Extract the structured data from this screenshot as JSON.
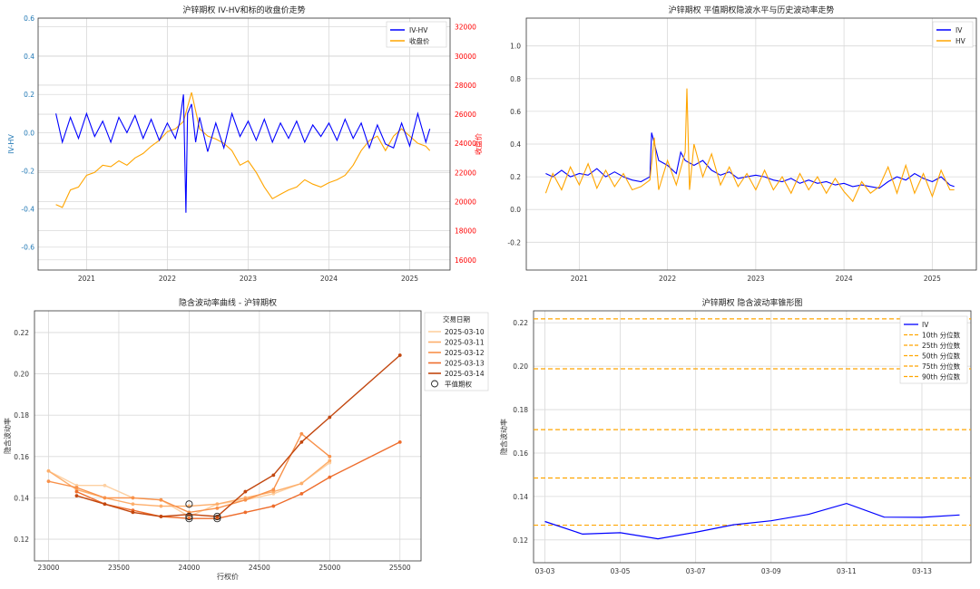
{
  "chart_data": [
    {
      "type": "line",
      "title": "沪锌期权 IV-HV和标的收盘价走势",
      "xlabel": "",
      "ylabel": "IV-HV",
      "ylabel2": "收盘价",
      "ylim": [
        -0.72,
        0.6
      ],
      "y2lim": [
        15300,
        32600
      ],
      "x_range": [
        2020.4,
        2025.5
      ],
      "x_ticks": [
        "2021",
        "2022",
        "2023",
        "2024",
        "2025"
      ],
      "y_ticks": [
        "-0.6",
        "-0.4",
        "-0.2",
        "0.0",
        "0.2",
        "0.4",
        "0.6"
      ],
      "y2_ticks": [
        "16000",
        "18000",
        "20000",
        "22000",
        "24000",
        "26000",
        "28000",
        "30000",
        "32000"
      ],
      "legend": [
        "IV-HV",
        "收盘价"
      ],
      "legend_position": "top-right",
      "colors": {
        "IV-HV": "#0000ff",
        "收盘价": "#ffa500",
        "left_axis": "#1f77b4",
        "right_axis": "#ff0000"
      },
      "series": [
        {
          "name": "IV-HV",
          "x": [
            2020.62,
            2020.7,
            2020.8,
            2020.9,
            2021.0,
            2021.1,
            2021.2,
            2021.3,
            2021.4,
            2021.5,
            2021.6,
            2021.7,
            2021.8,
            2021.9,
            2022.0,
            2022.1,
            2022.15,
            2022.2,
            2022.23,
            2022.25,
            2022.3,
            2022.35,
            2022.4,
            2022.5,
            2022.6,
            2022.7,
            2022.8,
            2022.9,
            2023.0,
            2023.1,
            2023.2,
            2023.3,
            2023.4,
            2023.5,
            2023.6,
            2023.7,
            2023.8,
            2023.9,
            2024.0,
            2024.1,
            2024.2,
            2024.3,
            2024.4,
            2024.5,
            2024.6,
            2024.7,
            2024.8,
            2024.9,
            2025.0,
            2025.1,
            2025.2,
            2025.25
          ],
          "values": [
            0.1,
            -0.05,
            0.08,
            -0.03,
            0.1,
            -0.02,
            0.06,
            -0.05,
            0.08,
            0.0,
            0.09,
            -0.03,
            0.07,
            -0.04,
            0.05,
            -0.03,
            0.05,
            0.2,
            -0.42,
            0.1,
            0.15,
            -0.05,
            0.08,
            -0.1,
            0.05,
            -0.08,
            0.1,
            -0.02,
            0.06,
            -0.04,
            0.07,
            -0.05,
            0.05,
            -0.03,
            0.06,
            -0.05,
            0.04,
            -0.02,
            0.05,
            -0.04,
            0.07,
            -0.03,
            0.05,
            -0.08,
            0.04,
            -0.06,
            -0.08,
            0.05,
            -0.07,
            0.1,
            -0.05,
            0.02
          ]
        },
        {
          "name": "收盘价",
          "x": [
            2020.62,
            2020.7,
            2020.8,
            2020.9,
            2021.0,
            2021.1,
            2021.2,
            2021.3,
            2021.4,
            2021.5,
            2021.6,
            2021.7,
            2021.8,
            2021.9,
            2022.0,
            2022.1,
            2022.2,
            2022.3,
            2022.4,
            2022.5,
            2022.6,
            2022.7,
            2022.8,
            2022.9,
            2023.0,
            2023.1,
            2023.2,
            2023.3,
            2023.4,
            2023.5,
            2023.6,
            2023.7,
            2023.8,
            2023.9,
            2024.0,
            2024.1,
            2024.2,
            2024.3,
            2024.4,
            2024.5,
            2024.6,
            2024.7,
            2024.8,
            2024.9,
            2025.0,
            2025.1,
            2025.2,
            2025.25
          ],
          "values": [
            19800,
            19600,
            20800,
            21000,
            21800,
            22000,
            22500,
            22400,
            22800,
            22500,
            23000,
            23300,
            23800,
            24200,
            24800,
            25000,
            25500,
            27500,
            25000,
            24500,
            24300,
            24000,
            23500,
            22500,
            22800,
            22000,
            21000,
            20200,
            20500,
            20800,
            21000,
            21500,
            21200,
            21000,
            21300,
            21500,
            21800,
            22500,
            23500,
            24200,
            24500,
            23500,
            24500,
            25000,
            24500,
            24000,
            23800,
            23500
          ]
        }
      ]
    },
    {
      "type": "line",
      "title": "沪锌期权 平值期权隐波水平与历史波动率走势",
      "xlabel": "",
      "ylabel": "",
      "ylim": [
        -0.37,
        1.17
      ],
      "x_range": [
        2020.4,
        2025.5
      ],
      "x_ticks": [
        "2021",
        "2022",
        "2023",
        "2024",
        "2025"
      ],
      "y_ticks": [
        "-0.2",
        "0.0",
        "0.2",
        "0.4",
        "0.6",
        "0.8",
        "1.0"
      ],
      "legend": [
        "IV",
        "HV"
      ],
      "legend_position": "top-right",
      "colors": {
        "IV": "#0000ff",
        "HV": "#ffa500"
      },
      "series": [
        {
          "name": "IV",
          "x": [
            2020.62,
            2020.7,
            2020.8,
            2020.9,
            2021.0,
            2021.1,
            2021.2,
            2021.3,
            2021.4,
            2021.5,
            2021.6,
            2021.7,
            2021.8,
            2021.82,
            2021.9,
            2022.0,
            2022.1,
            2022.15,
            2022.2,
            2022.3,
            2022.4,
            2022.5,
            2022.6,
            2022.7,
            2022.8,
            2022.9,
            2023.0,
            2023.1,
            2023.2,
            2023.3,
            2023.4,
            2023.5,
            2023.6,
            2023.7,
            2023.8,
            2023.9,
            2024.0,
            2024.1,
            2024.2,
            2024.3,
            2024.4,
            2024.5,
            2024.6,
            2024.7,
            2024.8,
            2024.9,
            2025.0,
            2025.1,
            2025.2,
            2025.25
          ],
          "values": [
            0.22,
            0.2,
            0.24,
            0.2,
            0.22,
            0.21,
            0.25,
            0.2,
            0.23,
            0.2,
            0.18,
            0.17,
            0.2,
            0.47,
            0.3,
            0.27,
            0.22,
            0.35,
            0.3,
            0.27,
            0.3,
            0.24,
            0.21,
            0.23,
            0.19,
            0.2,
            0.21,
            0.2,
            0.18,
            0.17,
            0.19,
            0.16,
            0.18,
            0.16,
            0.17,
            0.15,
            0.16,
            0.14,
            0.15,
            0.14,
            0.13,
            0.17,
            0.2,
            0.18,
            0.22,
            0.19,
            0.17,
            0.2,
            0.15,
            0.14
          ]
        },
        {
          "name": "HV",
          "x": [
            2020.62,
            2020.7,
            2020.8,
            2020.9,
            2021.0,
            2021.1,
            2021.2,
            2021.3,
            2021.4,
            2021.5,
            2021.6,
            2021.7,
            2021.8,
            2021.85,
            2021.9,
            2022.0,
            2022.1,
            2022.2,
            2022.22,
            2022.25,
            2022.3,
            2022.4,
            2022.5,
            2022.6,
            2022.7,
            2022.8,
            2022.9,
            2023.0,
            2023.1,
            2023.2,
            2023.3,
            2023.4,
            2023.5,
            2023.6,
            2023.7,
            2023.8,
            2023.9,
            2024.0,
            2024.1,
            2024.2,
            2024.3,
            2024.4,
            2024.5,
            2024.6,
            2024.7,
            2024.8,
            2024.9,
            2025.0,
            2025.1,
            2025.2,
            2025.25
          ],
          "values": [
            0.1,
            0.22,
            0.12,
            0.26,
            0.15,
            0.28,
            0.13,
            0.24,
            0.14,
            0.22,
            0.12,
            0.14,
            0.18,
            0.44,
            0.12,
            0.3,
            0.15,
            0.35,
            0.74,
            0.12,
            0.4,
            0.2,
            0.34,
            0.15,
            0.26,
            0.14,
            0.22,
            0.12,
            0.24,
            0.12,
            0.2,
            0.1,
            0.22,
            0.12,
            0.2,
            0.1,
            0.19,
            0.11,
            0.05,
            0.17,
            0.1,
            0.14,
            0.26,
            0.1,
            0.27,
            0.1,
            0.22,
            0.08,
            0.24,
            0.12,
            0.12
          ]
        }
      ]
    },
    {
      "type": "line",
      "title": "隐含波动率曲线 - 沪锌期权",
      "xlabel": "行权价",
      "ylabel": "隐含波动率",
      "xlim": [
        22900,
        25650
      ],
      "ylim": [
        0.1095,
        0.2305
      ],
      "x_ticks": [
        "23000",
        "23500",
        "24000",
        "24500",
        "25000",
        "25500"
      ],
      "y_ticks": [
        "0.12",
        "0.14",
        "0.16",
        "0.18",
        "0.20",
        "0.22"
      ],
      "legend_title": "交易日期",
      "legend": [
        "2025-03-10",
        "2025-03-11",
        "2025-03-12",
        "2025-03-13",
        "2025-03-14",
        "平值期权"
      ],
      "legend_position": "outside-right",
      "series": [
        {
          "name": "2025-03-10",
          "color": "#fdd0a2",
          "x": [
            23000,
            23200,
            23400,
            23600,
            23800,
            24000,
            24200,
            24400,
            24600,
            24800,
            25000
          ],
          "values": [
            0.153,
            0.146,
            0.146,
            0.14,
            0.139,
            0.131,
            0.137,
            0.139,
            0.142,
            0.147,
            0.157
          ]
        },
        {
          "name": "2025-03-11",
          "color": "#fdae6b",
          "x": [
            23000,
            23200,
            23400,
            23600,
            23800,
            24000,
            24200,
            24400,
            24600,
            24800,
            25000
          ],
          "values": [
            0.153,
            0.144,
            0.14,
            0.137,
            0.136,
            0.136,
            0.137,
            0.14,
            0.143,
            0.147,
            0.158
          ]
        },
        {
          "name": "2025-03-12",
          "color": "#f8914a",
          "x": [
            23000,
            23200,
            23400,
            23600,
            23800,
            24000,
            24200,
            24400,
            24600,
            24800,
            25000
          ],
          "values": [
            0.148,
            0.145,
            0.14,
            0.14,
            0.139,
            0.133,
            0.135,
            0.139,
            0.144,
            0.171,
            0.16
          ]
        },
        {
          "name": "2025-03-13",
          "color": "#ee6d2c",
          "x": [
            23200,
            23400,
            23600,
            23800,
            24000,
            24200,
            24400,
            24600,
            24800,
            25000,
            25500
          ],
          "values": [
            0.143,
            0.137,
            0.134,
            0.131,
            0.13,
            0.13,
            0.133,
            0.136,
            0.142,
            0.15,
            0.167
          ]
        },
        {
          "name": "2025-03-14",
          "color": "#c2470f",
          "x": [
            23200,
            23400,
            23600,
            23800,
            24000,
            24200,
            24400,
            24600,
            24800,
            25000,
            25500
          ],
          "values": [
            0.141,
            0.137,
            0.133,
            0.131,
            0.132,
            0.131,
            0.143,
            0.151,
            0.167,
            0.179,
            0.209
          ]
        }
      ],
      "atm_points": [
        {
          "x": 24000,
          "y": 0.137
        },
        {
          "x": 24000,
          "y": 0.131
        },
        {
          "x": 24000,
          "y": 0.13
        },
        {
          "x": 24200,
          "y": 0.131
        },
        {
          "x": 24200,
          "y": 0.13
        }
      ]
    },
    {
      "type": "line",
      "title": "沪锌期权 隐含波动率锥形图",
      "xlabel": "",
      "ylabel": "隐含波动率",
      "ylim": [
        0.1095,
        0.2255
      ],
      "x_ticks": [
        "03-03",
        "03-05",
        "03-07",
        "03-09",
        "03-11",
        "03-13"
      ],
      "y_ticks": [
        "0.12",
        "0.14",
        "0.16",
        "0.18",
        "0.20",
        "0.22"
      ],
      "legend": [
        "IV",
        "10th 分位数",
        "25th 分位数",
        "50th 分位数",
        "75th 分位数",
        "90th 分位数"
      ],
      "legend_position": "top-right",
      "colors": {
        "IV": "#0000ff",
        "quantiles": "#ffa500"
      },
      "x": [
        "03-03",
        "03-04",
        "03-05",
        "03-06",
        "03-07",
        "03-08",
        "03-09",
        "03-10",
        "03-11",
        "03-12",
        "03-13",
        "03-14"
      ],
      "series": [
        {
          "name": "IV",
          "values": [
            0.1285,
            0.1227,
            0.1233,
            0.1205,
            0.1235,
            0.127,
            0.1288,
            0.1318,
            0.1368,
            0.1305,
            0.1304,
            0.1315
          ]
        }
      ],
      "quantile_lines": [
        {
          "name": "10th 分位数",
          "value": 0.1268
        },
        {
          "name": "25th 分位数",
          "value": 0.1485
        },
        {
          "name": "50th 分位数",
          "value": 0.1708
        },
        {
          "name": "75th 分位数",
          "value": 0.1988
        },
        {
          "name": "90th 分位数",
          "value": 0.2218
        }
      ]
    }
  ]
}
